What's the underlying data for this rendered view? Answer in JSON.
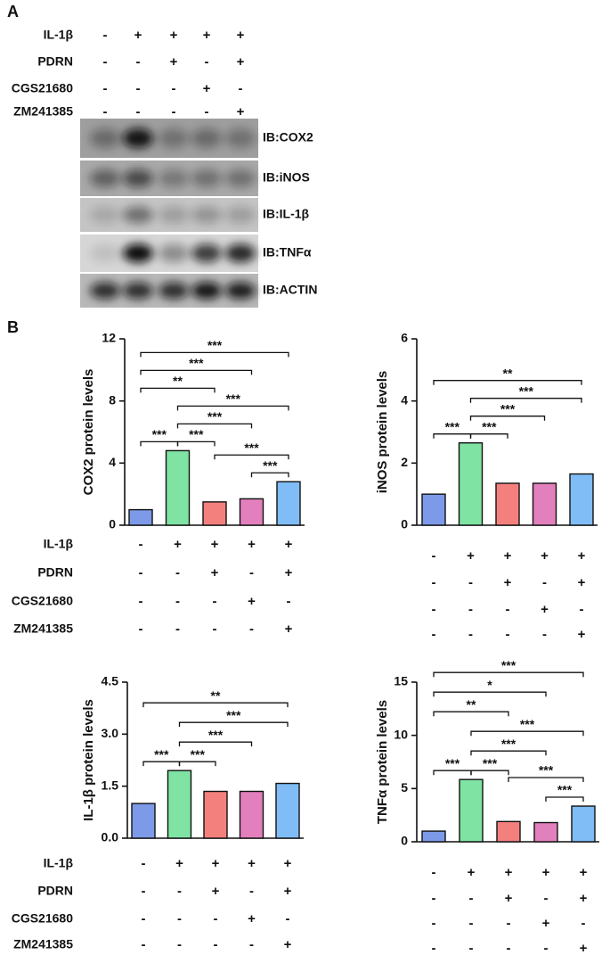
{
  "panel_a": {
    "label": "A",
    "conditions": [
      {
        "name": "IL-1β",
        "signs": [
          "-",
          "+",
          "+",
          "+",
          "+"
        ]
      },
      {
        "name": "PDRN",
        "signs": [
          "-",
          "-",
          "+",
          "-",
          "+"
        ]
      },
      {
        "name": "CGS21680",
        "signs": [
          "-",
          "-",
          "-",
          "+",
          "-"
        ]
      },
      {
        "name": "ZM241385",
        "signs": [
          "-",
          "-",
          "-",
          "-",
          "+"
        ]
      }
    ],
    "blots": [
      "IB:COX2",
      "IB:iNOS",
      "IB:IL-1β",
      "IB:TNFα",
      "IB:ACTIN"
    ]
  },
  "panel_b_label": "B",
  "chart_data": [
    {
      "type": "bar",
      "ylabel": "COX2 protein levels",
      "values": [
        1.0,
        4.8,
        1.5,
        1.7,
        2.8
      ],
      "colors": [
        "#7d9ae8",
        "#7fe3a3",
        "#f4807e",
        "#e27fbd",
        "#80bdf6"
      ],
      "ylim": [
        0,
        12
      ],
      "yticks": [
        0,
        4,
        8,
        12
      ],
      "conditions": [
        {
          "name": "IL-1β",
          "signs": [
            "-",
            "+",
            "+",
            "+",
            "+"
          ]
        },
        {
          "name": "PDRN",
          "signs": [
            "-",
            "-",
            "+",
            "-",
            "+"
          ]
        },
        {
          "name": "CGS21680",
          "signs": [
            "-",
            "-",
            "-",
            "+",
            "-"
          ]
        },
        {
          "name": "ZM241385",
          "signs": [
            "-",
            "-",
            "-",
            "-",
            "+"
          ]
        }
      ],
      "brackets": [
        {
          "from": 0,
          "to": 1,
          "label": "***"
        },
        {
          "from": 1,
          "to": 2,
          "label": "***"
        },
        {
          "from": 3,
          "to": 4,
          "label": "***"
        },
        {
          "from": 2,
          "to": 4,
          "label": "***"
        },
        {
          "from": 1,
          "to": 3,
          "label": "***"
        },
        {
          "from": 1,
          "to": 4,
          "label": "***"
        },
        {
          "from": 0,
          "to": 2,
          "label": "**"
        },
        {
          "from": 0,
          "to": 3,
          "label": "***"
        },
        {
          "from": 0,
          "to": 4,
          "label": "***"
        }
      ]
    },
    {
      "type": "bar",
      "ylabel": "iNOS protein levels",
      "values": [
        1.0,
        2.65,
        1.35,
        1.35,
        1.65
      ],
      "colors": [
        "#7d9ae8",
        "#7fe3a3",
        "#f4807e",
        "#e27fbd",
        "#80bdf6"
      ],
      "ylim": [
        0,
        6
      ],
      "yticks": [
        0,
        2,
        4,
        6
      ],
      "conditions": [
        {
          "signs": [
            "-",
            "+",
            "+",
            "+",
            "+"
          ]
        },
        {
          "signs": [
            "-",
            "-",
            "+",
            "-",
            "+"
          ]
        },
        {
          "signs": [
            "-",
            "-",
            "-",
            "+",
            "-"
          ]
        },
        {
          "signs": [
            "-",
            "-",
            "-",
            "-",
            "+"
          ]
        }
      ],
      "brackets": [
        {
          "from": 0,
          "to": 1,
          "label": "***"
        },
        {
          "from": 1,
          "to": 2,
          "label": "***"
        },
        {
          "from": 1,
          "to": 3,
          "label": "***"
        },
        {
          "from": 1,
          "to": 4,
          "label": "***"
        },
        {
          "from": 0,
          "to": 4,
          "label": "**"
        }
      ]
    },
    {
      "type": "bar",
      "ylabel": "IL-1β protein levels",
      "values": [
        1.0,
        1.95,
        1.35,
        1.35,
        1.58
      ],
      "colors": [
        "#7d9ae8",
        "#7fe3a3",
        "#f4807e",
        "#e27fbd",
        "#80bdf6"
      ],
      "ylim": [
        0,
        4.5
      ],
      "yticks": [
        {
          "value": 0,
          "label": "0.0"
        },
        1.5,
        {
          "value": 3,
          "label": "3.0"
        },
        4.5
      ],
      "conditions": [
        {
          "name": "IL-1β",
          "signs": [
            "-",
            "+",
            "+",
            "+",
            "+"
          ]
        },
        {
          "name": "PDRN",
          "signs": [
            "-",
            "-",
            "+",
            "-",
            "+"
          ]
        },
        {
          "name": "CGS21680",
          "signs": [
            "-",
            "-",
            "-",
            "+",
            "-"
          ]
        },
        {
          "name": "ZM241385",
          "signs": [
            "-",
            "-",
            "-",
            "-",
            "+"
          ]
        }
      ],
      "brackets": [
        {
          "from": 0,
          "to": 1,
          "label": "***"
        },
        {
          "from": 1,
          "to": 2,
          "label": "***"
        },
        {
          "from": 1,
          "to": 3,
          "label": "***"
        },
        {
          "from": 1,
          "to": 4,
          "label": "***"
        },
        {
          "from": 0,
          "to": 4,
          "label": "**"
        }
      ]
    },
    {
      "type": "bar",
      "ylabel": "TNFα protein levels",
      "values": [
        1.0,
        5.85,
        1.9,
        1.8,
        3.35
      ],
      "colors": [
        "#7d9ae8",
        "#7fe3a3",
        "#f4807e",
        "#e27fbd",
        "#80bdf6"
      ],
      "ylim": [
        0,
        15
      ],
      "yticks": [
        0,
        5,
        10,
        15
      ],
      "conditions": [
        {
          "signs": [
            "-",
            "+",
            "+",
            "+",
            "+"
          ]
        },
        {
          "signs": [
            "-",
            "-",
            "+",
            "-",
            "+"
          ]
        },
        {
          "signs": [
            "-",
            "-",
            "-",
            "+",
            "-"
          ]
        },
        {
          "signs": [
            "-",
            "-",
            "-",
            "-",
            "+"
          ]
        }
      ],
      "brackets": [
        {
          "from": 0,
          "to": 1,
          "label": "***"
        },
        {
          "from": 1,
          "to": 2,
          "label": "***"
        },
        {
          "from": 3,
          "to": 4,
          "label": "***"
        },
        {
          "from": 2,
          "to": 4,
          "label": "***"
        },
        {
          "from": 1,
          "to": 3,
          "label": "***"
        },
        {
          "from": 1,
          "to": 4,
          "label": "***"
        },
        {
          "from": 0,
          "to": 2,
          "label": "**"
        },
        {
          "from": 0,
          "to": 3,
          "label": "*"
        },
        {
          "from": 0,
          "to": 4,
          "label": "***"
        }
      ]
    }
  ]
}
